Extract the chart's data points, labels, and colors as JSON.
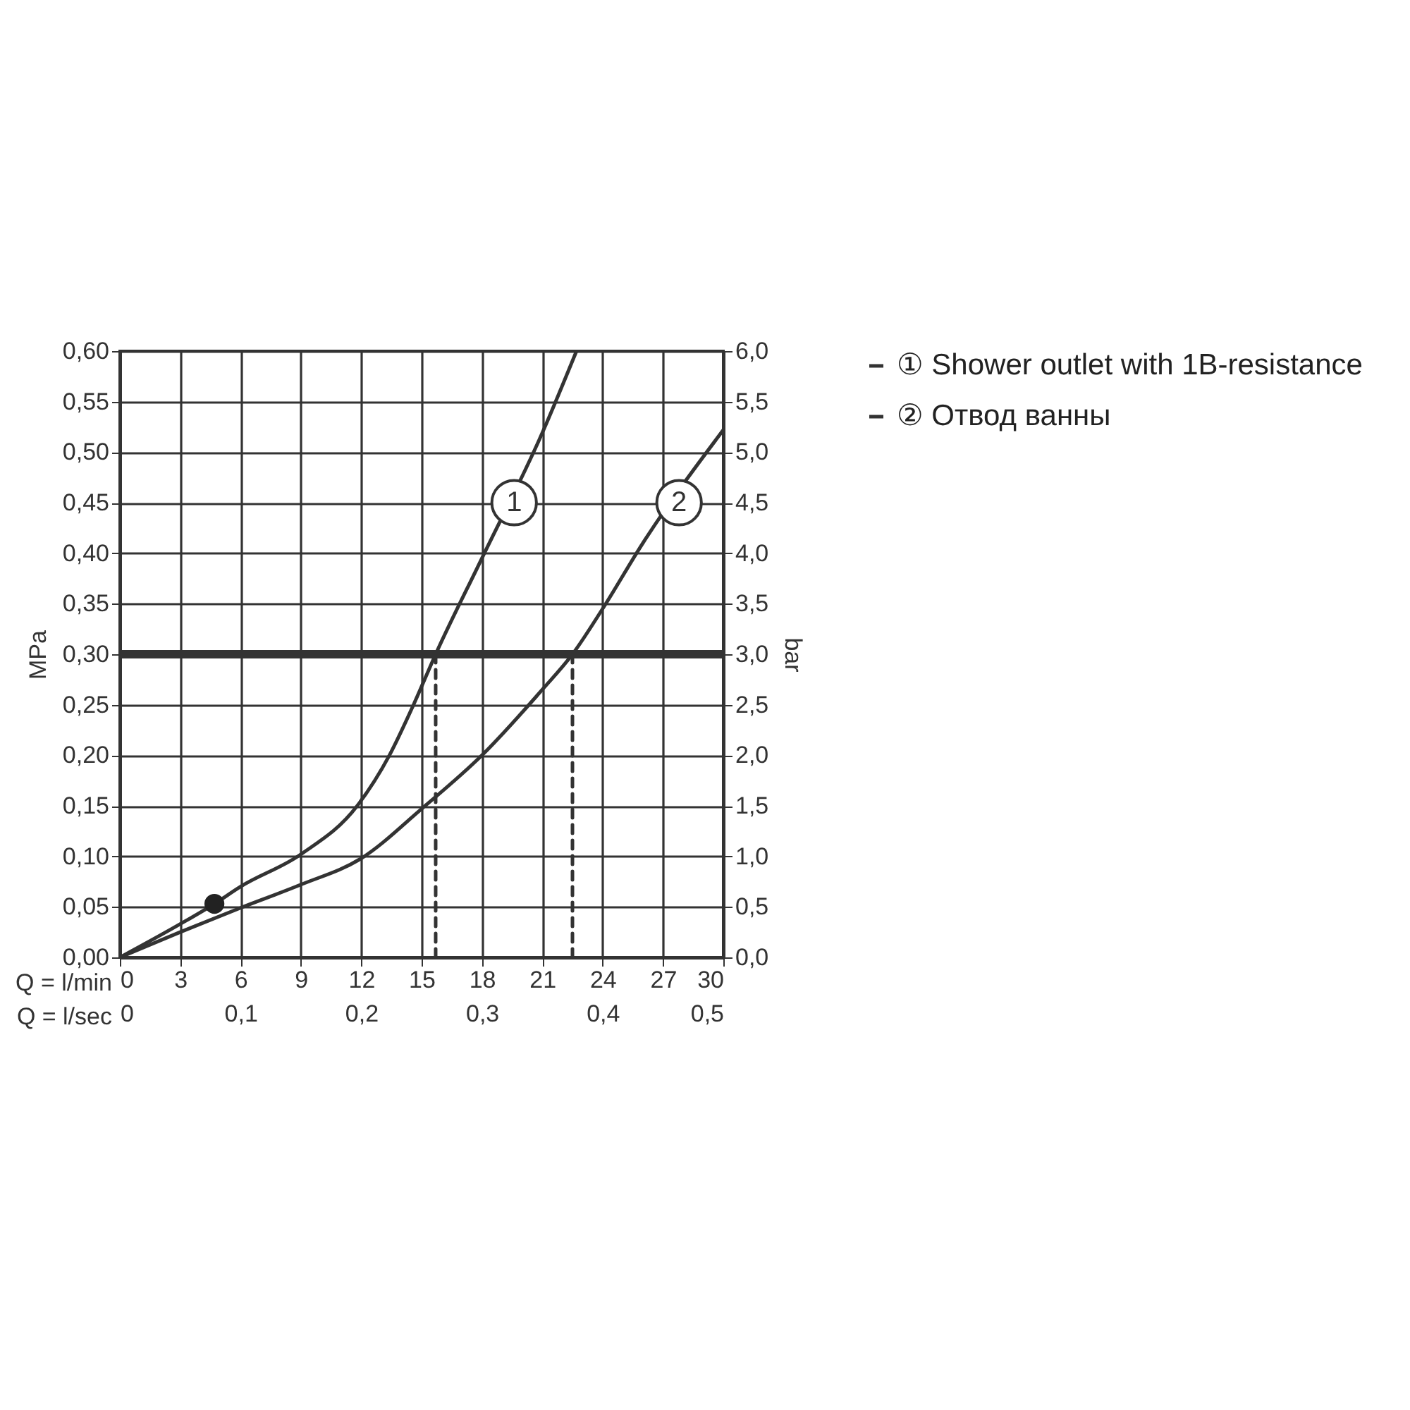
{
  "chart_data": {
    "type": "line",
    "xlabel": "Q = l/min",
    "ylabel": "MPa",
    "y2label": "bar",
    "x2label": "Q = l/sec",
    "xlim": [
      0,
      30
    ],
    "xticks": [
      0,
      3,
      6,
      9,
      12,
      15,
      18,
      21,
      24,
      27,
      30
    ],
    "x2lim": [
      0,
      0.5
    ],
    "x2ticks": [
      0,
      {
        "value": 0.1,
        "label": "0,1"
      },
      {
        "value": 0.2,
        "label": "0,2"
      },
      {
        "value": 0.3,
        "label": "0,3"
      },
      {
        "value": 0.4,
        "label": "0,4"
      },
      {
        "value": 0.5,
        "label": "0,5"
      }
    ],
    "ylim": [
      0,
      0.6
    ],
    "yticks": [
      {
        "value": 0,
        "label": "0,00"
      },
      {
        "value": 0.05,
        "label": "0,05"
      },
      {
        "value": 0.1,
        "label": "0,10"
      },
      {
        "value": 0.15,
        "label": "0,15"
      },
      {
        "value": 0.2,
        "label": "0,20"
      },
      {
        "value": 0.25,
        "label": "0,25"
      },
      {
        "value": 0.3,
        "label": "0,30"
      },
      {
        "value": 0.35,
        "label": "0,35"
      },
      {
        "value": 0.4,
        "label": "0,40"
      },
      {
        "value": 0.45,
        "label": "0,45"
      },
      {
        "value": 0.5,
        "label": "0,50"
      },
      {
        "value": 0.55,
        "label": "0,55"
      },
      {
        "value": 0.6,
        "label": "0,60"
      }
    ],
    "y2lim": [
      0,
      6
    ],
    "y2ticks": [
      {
        "value": 0,
        "label": "0,0"
      },
      {
        "value": 0.5,
        "label": "0,5"
      },
      {
        "value": 1,
        "label": "1,0"
      },
      {
        "value": 1.5,
        "label": "1,5"
      },
      {
        "value": 2,
        "label": "2,0"
      },
      {
        "value": 2.5,
        "label": "2,5"
      },
      {
        "value": 3,
        "label": "3,0"
      },
      {
        "value": 3.5,
        "label": "3,5"
      },
      {
        "value": 4,
        "label": "4,0"
      },
      {
        "value": 4.5,
        "label": "4,5"
      },
      {
        "value": 5,
        "label": "5,0"
      },
      {
        "value": 5.5,
        "label": "5,5"
      },
      {
        "value": 6,
        "label": "6,0"
      }
    ],
    "grid": true,
    "legend": "right",
    "series": [
      {
        "name": "① Shower outlet with 1B-resistance",
        "color": "#333333",
        "x": [
          0,
          3,
          4.7,
          6,
          9,
          11.8,
          13.4,
          14.6,
          15.7,
          18,
          21,
          22.7
        ],
        "values": [
          0,
          0.033,
          0.053,
          0.07,
          0.102,
          0.15,
          0.2,
          0.25,
          0.3,
          0.395,
          0.519,
          0.6
        ]
      },
      {
        "name": "② Отвод ванны",
        "color": "#333333",
        "x": [
          0,
          3,
          6,
          9,
          12,
          15,
          18,
          21,
          22.5,
          24,
          26,
          30
        ],
        "values": [
          0,
          0.025,
          0.049,
          0.072,
          0.098,
          0.147,
          0.2,
          0.265,
          0.3,
          0.345,
          0.41,
          0.522
        ]
      },
      {
        "type": "line",
        "line_style": "dashed",
        "color": "#333333",
        "x": [
          15.7,
          15.7
        ],
        "values": [
          0,
          0.3
        ]
      },
      {
        "type": "line",
        "line_style": "dashed",
        "color": "#333333",
        "x": [
          22.5,
          22.5
        ],
        "values": [
          0,
          0.3
        ]
      },
      {
        "type": "scatter",
        "marker": "circle",
        "color": "#222222",
        "x": [
          4.7
        ],
        "values": [
          0.053
        ]
      }
    ],
    "ref_lines": [
      {
        "axis": "y",
        "value": 0.3,
        "color": "#333333"
      }
    ],
    "annotations": [
      {
        "text": "1",
        "x": 19.6,
        "y": 0.45
      },
      {
        "text": "2",
        "x": 27.8,
        "y": 0.45
      }
    ]
  }
}
